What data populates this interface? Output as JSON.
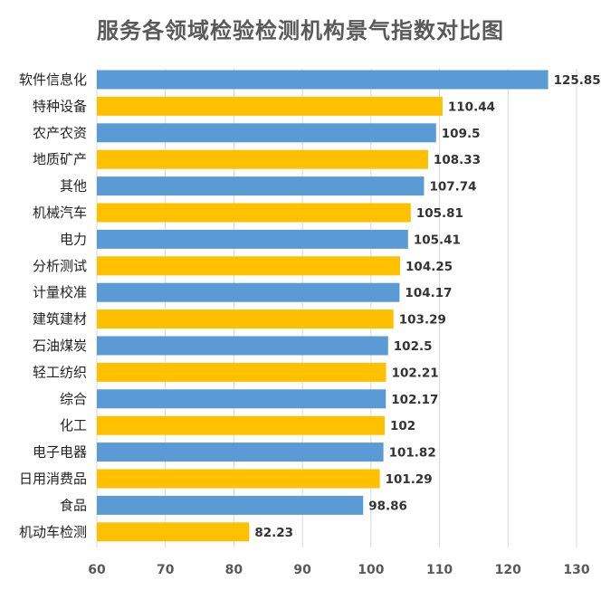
{
  "chart_data": {
    "type": "bar",
    "orientation": "horizontal",
    "title": "服务各领域检验检测机构景气指数对比图",
    "xlabel": "",
    "ylabel": "",
    "xlim": [
      60,
      130
    ],
    "x_ticks": [
      60,
      70,
      80,
      90,
      100,
      110,
      120,
      130
    ],
    "grid": true,
    "legend": "none",
    "categories": [
      "软件信息化",
      "特种设备",
      "农产农资",
      "地质矿产",
      "其他",
      "机械汽车",
      "电力",
      "分析测试",
      "计量校准",
      "建筑建材",
      "石油煤炭",
      "轻工纺织",
      "综合",
      "化工",
      "电子电器",
      "日用消费品",
      "食品",
      "机动车检测"
    ],
    "values": [
      125.85,
      110.44,
      109.5,
      108.33,
      107.74,
      105.81,
      105.41,
      104.25,
      104.17,
      103.29,
      102.5,
      102.21,
      102.17,
      102,
      101.82,
      101.29,
      98.86,
      82.23
    ],
    "value_labels": [
      "125.85",
      "110.44",
      "109.5",
      "108.33",
      "107.74",
      "105.81",
      "105.41",
      "104.25",
      "104.17",
      "103.29",
      "102.5",
      "102.21",
      "102.17",
      "102",
      "101.82",
      "101.29",
      "98.86",
      "82.23"
    ],
    "bar_colors": [
      "#5B9BD5",
      "#FFC000"
    ]
  },
  "colors": {
    "title": "#595959",
    "category_label": "#222222",
    "value_label": "#333333",
    "tick_label": "#595959",
    "grid": "#d9d9d9"
  }
}
